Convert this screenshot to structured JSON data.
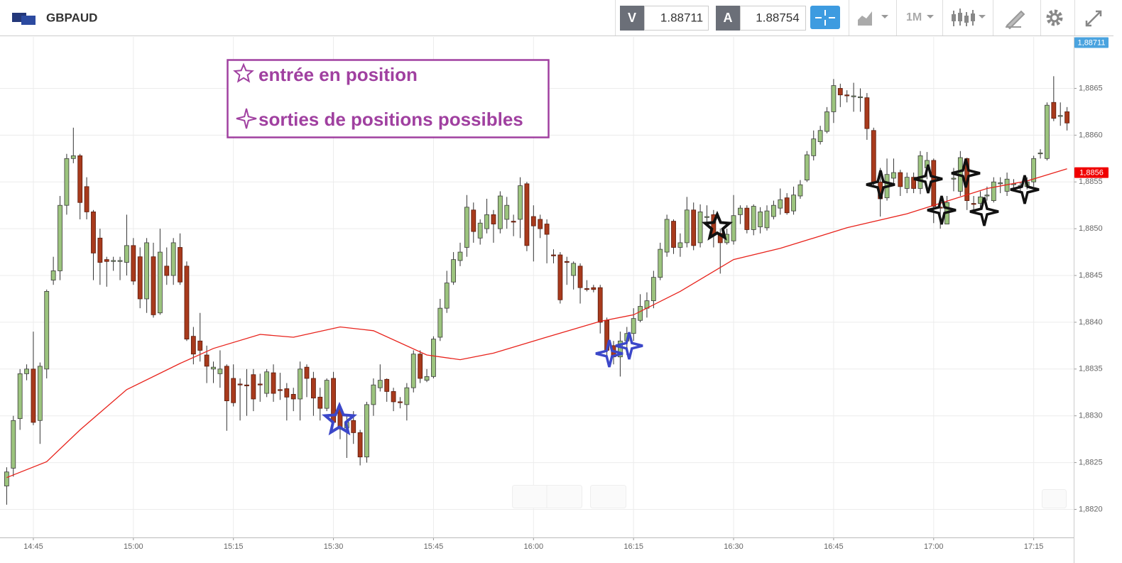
{
  "toolbar": {
    "symbol": "GBPAUD",
    "bid_label": "V",
    "bid": 1.88711,
    "ask_label": "A",
    "ask": 1.88754,
    "timeframe": "1M"
  },
  "chart_data": {
    "type": "candlestick",
    "legend": {
      "entry": "entrée en position",
      "exits": "sorties de positions possibles"
    },
    "up_color": "#9cc47e",
    "down_color": "#a83a1c",
    "grid": true,
    "x": [
      "14:41",
      "14:42",
      "14:43",
      "14:44",
      "14:45",
      "14:46",
      "14:47",
      "14:48",
      "14:49",
      "14:50",
      "14:51",
      "14:52",
      "14:53",
      "14:54",
      "14:55",
      "14:56",
      "14:57",
      "14:58",
      "14:59",
      "15:00",
      "15:01",
      "15:02",
      "15:03",
      "15:04",
      "15:05",
      "15:06",
      "15:07",
      "15:08",
      "15:09",
      "15:10",
      "15:11",
      "15:12",
      "15:13",
      "15:14",
      "15:15",
      "15:16",
      "15:17",
      "15:18",
      "15:19",
      "15:20",
      "15:21",
      "15:22",
      "15:23",
      "15:24",
      "15:25",
      "15:26",
      "15:27",
      "15:28",
      "15:29",
      "15:30",
      "15:31",
      "15:32",
      "15:33",
      "15:34",
      "15:35",
      "15:36",
      "15:37",
      "15:38",
      "15:39",
      "15:40",
      "15:41",
      "15:42",
      "15:43",
      "15:44",
      "15:45",
      "15:46",
      "15:47",
      "15:48",
      "15:49",
      "15:50",
      "15:51",
      "15:52",
      "15:53",
      "15:54",
      "15:55",
      "15:56",
      "15:57",
      "15:58",
      "15:59",
      "16:00",
      "16:01",
      "16:02",
      "16:03",
      "16:04",
      "16:05",
      "16:06",
      "16:07",
      "16:08",
      "16:09",
      "16:10",
      "16:11",
      "16:12",
      "16:13",
      "16:14",
      "16:15",
      "16:16",
      "16:17",
      "16:18",
      "16:19",
      "16:20",
      "16:21",
      "16:22",
      "16:23",
      "16:24",
      "16:25",
      "16:26",
      "16:27",
      "16:28",
      "16:29",
      "16:30",
      "16:31",
      "16:32",
      "16:33",
      "16:34",
      "16:35",
      "16:36",
      "16:37",
      "16:38",
      "16:39",
      "16:40",
      "16:41",
      "16:42",
      "16:43",
      "16:44",
      "16:45",
      "16:46",
      "16:47",
      "16:48",
      "16:49",
      "16:50",
      "16:51",
      "16:52",
      "16:53",
      "16:54",
      "16:55",
      "16:56",
      "16:57",
      "16:58",
      "16:59",
      "17:00",
      "17:01",
      "17:02",
      "17:03",
      "17:04",
      "17:05",
      "17:06",
      "17:07",
      "17:08",
      "17:09",
      "17:10",
      "17:11",
      "17:12",
      "17:13",
      "17:14",
      "17:15",
      "17:16",
      "17:17",
      "17:18",
      "17:19",
      "17:20"
    ],
    "open": [
      1.88225,
      1.88244,
      1.88297,
      1.88345,
      1.8835,
      1.88295,
      1.8835,
      1.88445,
      1.88455,
      1.88525,
      1.88575,
      1.88578,
      1.88545,
      1.88518,
      1.8849,
      1.88467,
      1.88465,
      1.88465,
      1.88464,
      1.88482,
      1.8847,
      1.88425,
      1.8847,
      1.8841,
      1.8846,
      1.8845,
      1.8848,
      1.8846,
      1.88385,
      1.8838,
      1.88365,
      1.8835,
      1.88345,
      1.88353,
      1.8834,
      1.88334,
      1.88333,
      1.88344,
      1.88334,
      1.88324,
      1.88346,
      1.88328,
      1.88329,
      1.88323,
      1.88318,
      1.88352,
      1.8834,
      1.8832,
      1.88308,
      1.8834,
      1.88307,
      1.88287,
      1.88295,
      1.88282,
      1.88256,
      1.88312,
      1.8833,
      1.88339,
      1.88326,
      1.88315,
      1.88312,
      1.8833,
      1.88366,
      1.88338,
      1.88342,
      1.88384,
      1.88415,
      1.88443,
      1.88466,
      1.8848,
      1.8852,
      1.8849,
      1.885,
      1.88515,
      1.885,
      1.8851,
      1.88508,
      1.8851,
      1.88548,
      1.88513,
      1.8851,
      1.88505,
      1.88472,
      1.88472,
      1.88465,
      1.8845,
      1.8846,
      1.88436,
      1.88437,
      1.88437,
      1.88402,
      1.88375,
      1.88363,
      1.8838,
      1.88388,
      1.88402,
      1.88415,
      1.88423,
      1.88448,
      1.88475,
      1.88508,
      1.8848,
      1.88485,
      1.8852,
      1.88485,
      1.88512,
      1.88515,
      1.88495,
      1.88485,
      1.88487,
      1.88515,
      1.88522,
      1.88499,
      1.88502,
      1.88501,
      1.88513,
      1.88522,
      1.88533,
      1.88519,
      1.88535,
      1.88552,
      1.88578,
      1.88593,
      1.88604,
      1.88625,
      1.8865,
      1.88643,
      1.88641,
      1.8864,
      1.8864,
      1.88605,
      1.8855,
      1.88533,
      1.88554,
      1.8856,
      1.88543,
      1.88555,
      1.88543,
      1.88565,
      1.88573,
      1.88523,
      1.88505,
      1.88553,
      1.8854,
      1.88575,
      1.88527,
      1.88527,
      1.88535,
      1.8853,
      1.88548,
      1.8854,
      1.88547,
      1.88545,
      1.88545,
      1.8855,
      1.8858,
      1.88575,
      1.88635,
      1.8862,
      1.88625
    ],
    "high": [
      1.88245,
      1.883,
      1.8835,
      1.88355,
      1.8839,
      1.88357,
      1.88435,
      1.8847,
      1.88535,
      1.8858,
      1.88608,
      1.8858,
      1.88555,
      1.8852,
      1.885,
      1.8847,
      1.8847,
      1.8847,
      1.88515,
      1.8849,
      1.8848,
      1.8849,
      1.88485,
      1.885,
      1.8848,
      1.8849,
      1.88495,
      1.88465,
      1.88395,
      1.8841,
      1.88375,
      1.88358,
      1.8837,
      1.88355,
      1.88355,
      1.8834,
      1.8835,
      1.8835,
      1.88345,
      1.8835,
      1.88355,
      1.88346,
      1.88335,
      1.8833,
      1.88358,
      1.88355,
      1.88347,
      1.8833,
      1.8834,
      1.88347,
      1.8831,
      1.883,
      1.88305,
      1.88285,
      1.88315,
      1.8834,
      1.88355,
      1.8834,
      1.8833,
      1.8832,
      1.88335,
      1.8837,
      1.8837,
      1.8835,
      1.88385,
      1.88425,
      1.88455,
      1.88475,
      1.88485,
      1.88536,
      1.88528,
      1.8851,
      1.88532,
      1.8852,
      1.8854,
      1.88534,
      1.88515,
      1.88555,
      1.8855,
      1.88525,
      1.88515,
      1.8851,
      1.88478,
      1.88475,
      1.8847,
      1.88465,
      1.88463,
      1.88445,
      1.8844,
      1.8844,
      1.88405,
      1.8838,
      1.8839,
      1.88395,
      1.88415,
      1.8843,
      1.88432,
      1.88455,
      1.88485,
      1.88515,
      1.8851,
      1.88495,
      1.88534,
      1.88528,
      1.88526,
      1.88525,
      1.8852,
      1.885,
      1.885,
      1.88536,
      1.88525,
      1.88525,
      1.88526,
      1.88523,
      1.88525,
      1.8853,
      1.88543,
      1.88538,
      1.88545,
      1.88552,
      1.88583,
      1.88605,
      1.8861,
      1.8863,
      1.8866,
      1.88655,
      1.88648,
      1.88656,
      1.8865,
      1.88645,
      1.88608,
      1.88565,
      1.88575,
      1.88575,
      1.88563,
      1.8856,
      1.8856,
      1.88583,
      1.88582,
      1.88575,
      1.8853,
      1.88535,
      1.88565,
      1.88583,
      1.88576,
      1.88535,
      1.8854,
      1.88545,
      1.88555,
      1.88555,
      1.8856,
      1.88553,
      1.8855,
      1.88555,
      1.88578,
      1.88585,
      1.88635,
      1.88663,
      1.88635,
      1.8863
    ],
    "low": [
      1.88205,
      1.88235,
      1.88285,
      1.88338,
      1.8829,
      1.8827,
      1.8834,
      1.8844,
      1.88445,
      1.88515,
      1.8857,
      1.8851,
      1.8851,
      1.88445,
      1.8844,
      1.88438,
      1.88455,
      1.88445,
      1.8845,
      1.8844,
      1.88415,
      1.8841,
      1.88405,
      1.88408,
      1.8844,
      1.8844,
      1.8844,
      1.8838,
      1.88355,
      1.88358,
      1.88335,
      1.88335,
      1.8833,
      1.88284,
      1.8831,
      1.88295,
      1.883,
      1.88305,
      1.88315,
      1.8832,
      1.88315,
      1.88317,
      1.88295,
      1.88305,
      1.88295,
      1.8832,
      1.883,
      1.88295,
      1.88305,
      1.8829,
      1.88275,
      1.88255,
      1.8827,
      1.88247,
      1.8825,
      1.883,
      1.88326,
      1.88315,
      1.88305,
      1.88308,
      1.88295,
      1.88325,
      1.88335,
      1.88336,
      1.8834,
      1.8838,
      1.8841,
      1.8844,
      1.8846,
      1.8847,
      1.88485,
      1.88483,
      1.88495,
      1.88485,
      1.88495,
      1.885,
      1.88492,
      1.8849,
      1.88476,
      1.88465,
      1.8849,
      1.88463,
      1.88463,
      1.8842,
      1.8844,
      1.88435,
      1.8842,
      1.88433,
      1.88432,
      1.88388,
      1.88365,
      1.88355,
      1.88342,
      1.88365,
      1.8838,
      1.884,
      1.88405,
      1.88415,
      1.88445,
      1.8847,
      1.88473,
      1.8847,
      1.8848,
      1.88477,
      1.8848,
      1.88503,
      1.8848,
      1.88452,
      1.88483,
      1.88483,
      1.88505,
      1.88495,
      1.88493,
      1.88495,
      1.88498,
      1.8851,
      1.88515,
      1.88515,
      1.88515,
      1.88532,
      1.8855,
      1.88573,
      1.8859,
      1.88602,
      1.88613,
      1.8863,
      1.88635,
      1.88625,
      1.88625,
      1.88595,
      1.88545,
      1.88513,
      1.8853,
      1.88547,
      1.88535,
      1.88538,
      1.88538,
      1.88537,
      1.88553,
      1.88506,
      1.885,
      1.88505,
      1.8854,
      1.88535,
      1.8852,
      1.88516,
      1.8852,
      1.8853,
      1.88528,
      1.88538,
      1.88535,
      1.8854,
      1.8854,
      1.88542,
      1.88545,
      1.88575,
      1.88573,
      1.88615,
      1.8861,
      1.88605
    ],
    "close": [
      1.8824,
      1.88295,
      1.88345,
      1.8835,
      1.88293,
      1.88353,
      1.88433,
      1.88455,
      1.88525,
      1.88575,
      1.88578,
      1.88528,
      1.88518,
      1.88474,
      1.88464,
      1.88465,
      1.88466,
      1.88466,
      1.88482,
      1.88444,
      1.88425,
      1.88485,
      1.88408,
      1.88475,
      1.8845,
      1.88485,
      1.88443,
      1.88382,
      1.88366,
      1.8837,
      1.88353,
      1.88352,
      1.8835,
      1.88316,
      1.88314,
      1.88333,
      1.88332,
      1.88318,
      1.88333,
      1.88347,
      1.88324,
      1.88327,
      1.8832,
      1.88318,
      1.8835,
      1.8834,
      1.88319,
      1.88308,
      1.88338,
      1.88293,
      1.88286,
      1.88293,
      1.88282,
      1.88256,
      1.88312,
      1.88333,
      1.88338,
      1.88326,
      1.88315,
      1.88314,
      1.8833,
      1.88366,
      1.8834,
      1.88342,
      1.88382,
      1.88415,
      1.88442,
      1.88467,
      1.88475,
      1.88523,
      1.88497,
      1.88506,
      1.88515,
      1.88505,
      1.88535,
      1.88525,
      1.88507,
      1.88546,
      1.88482,
      1.88503,
      1.885,
      1.88494,
      1.88471,
      1.88424,
      1.88464,
      1.88463,
      1.88437,
      1.88435,
      1.88435,
      1.884,
      1.8837,
      1.88363,
      1.8838,
      1.88388,
      1.88404,
      1.88417,
      1.88423,
      1.88448,
      1.88478,
      1.8851,
      1.8848,
      1.88485,
      1.8852,
      1.88482,
      1.88518,
      1.88513,
      1.88493,
      1.88485,
      1.88494,
      1.88514,
      1.88522,
      1.88499,
      1.88524,
      1.88518,
      1.88519,
      1.88525,
      1.88531,
      1.88517,
      1.88536,
      1.88547,
      1.88579,
      1.88596,
      1.88605,
      1.88625,
      1.88653,
      1.88643,
      1.88642,
      1.88642,
      1.88641,
      1.88607,
      1.8855,
      1.88532,
      1.88558,
      1.8856,
      1.88545,
      1.88555,
      1.88543,
      1.88578,
      1.88573,
      1.88524,
      1.88522,
      1.88528,
      1.88554,
      1.88576,
      1.8853,
      1.88526,
      1.88534,
      1.88536,
      1.8855,
      1.88549,
      1.88553,
      1.88548,
      1.88546,
      1.8855,
      1.88575,
      1.88581,
      1.88632,
      1.88618,
      1.88621,
      1.88613
    ],
    "ma": {
      "color": "#e8221b",
      "x": [
        "14:41",
        "14:47",
        "14:52",
        "14:59",
        "15:07",
        "15:12",
        "15:19",
        "15:24",
        "15:31",
        "15:36",
        "15:44",
        "15:49",
        "15:54",
        "16:01",
        "16:10",
        "16:15",
        "16:22",
        "16:30",
        "16:37",
        "16:47",
        "16:56",
        "17:08",
        "17:14",
        "17:20"
      ],
      "values": [
        1.88234,
        1.88251,
        1.88285,
        1.88328,
        1.88356,
        1.88372,
        1.88387,
        1.88384,
        1.88395,
        1.88391,
        1.88365,
        1.8836,
        1.88367,
        1.88382,
        1.88401,
        1.88408,
        1.88433,
        1.88467,
        1.88479,
        1.88501,
        1.88516,
        1.88543,
        1.88551,
        1.88564
      ]
    },
    "price_markers": [
      {
        "value": 1.88711,
        "label": "1,88711",
        "color": "#4aa3df"
      },
      {
        "value": 1.8856,
        "label": "1,8856",
        "color": "#f00000"
      }
    ],
    "xlim": [
      "14:40",
      "17:21"
    ],
    "ylim": [
      1.8817,
      1.88705
    ],
    "xticks": [
      "14:45",
      "15:00",
      "15:15",
      "15:30",
      "15:45",
      "16:00",
      "16:15",
      "16:30",
      "16:45",
      "17:00",
      "17:15"
    ],
    "yticks": [
      {
        "value": 1.882,
        "label": "1,8820"
      },
      {
        "value": 1.8825,
        "label": "1,8825"
      },
      {
        "value": 1.883,
        "label": "1,8830"
      },
      {
        "value": 1.8835,
        "label": "1,8835"
      },
      {
        "value": 1.884,
        "label": "1,8840"
      },
      {
        "value": 1.8845,
        "label": "1,8845"
      },
      {
        "value": 1.885,
        "label": "1,8850"
      },
      {
        "value": 1.8855,
        "label": "1,8855"
      },
      {
        "value": 1.886,
        "label": "1,8860"
      },
      {
        "value": 1.8865,
        "label": "1,8865"
      }
    ]
  }
}
